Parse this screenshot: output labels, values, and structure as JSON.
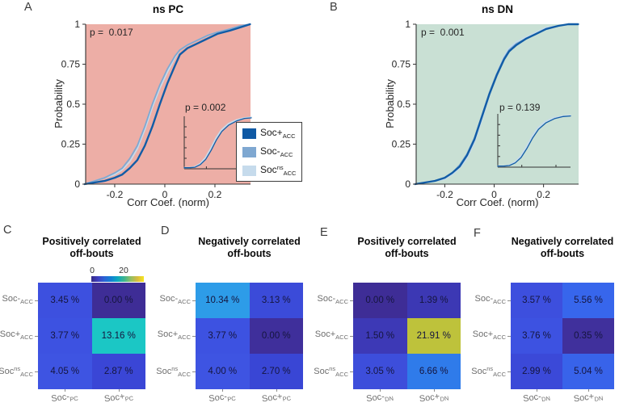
{
  "panel_a": {
    "letter": "A",
    "title": "ns PC",
    "p_label": "p =  0.017",
    "inset_p_label": "p = 0.002",
    "ylabel": "Probability",
    "xlabel": "Corr Coef. (norm)"
  },
  "panel_b": {
    "letter": "B",
    "title": "ns DN",
    "p_label": "p =  0.001",
    "inset_p_label": "p = 0.139",
    "ylabel": "Probability",
    "xlabel": "Corr Coef. (norm)"
  },
  "legend": {
    "items": [
      {
        "base": "Soc+",
        "sup": "",
        "sub": "ACC",
        "color": "#0F59A4"
      },
      {
        "base": "Soc-",
        "sup": "",
        "sub": "ACC",
        "color": "#7FA8D1"
      },
      {
        "base": "Soc",
        "sup": "ns",
        "sub": "ACC",
        "color": "#C6DBEC"
      }
    ]
  },
  "colorbar": {
    "tick_low": "0",
    "tick_high": "20",
    "gradient": [
      "#352A87",
      "#3E3FC2",
      "#2A63D5",
      "#1181D2",
      "#0CA7BE",
      "#3EB58E",
      "#90BE64",
      "#D9BB3F",
      "#F6E61F"
    ]
  },
  "chart_data": [
    {
      "type": "line",
      "subtype": "cdf",
      "panel": "A",
      "title": "ns PC",
      "annotation": "p =  0.017",
      "xlabel": "Corr Coef. (norm)",
      "ylabel": "Probability",
      "xlim": [
        -0.316,
        0.342
      ],
      "ylim": [
        0,
        1
      ],
      "xticks": [
        -0.2,
        0,
        0.2
      ],
      "yticks": [
        0,
        0.25,
        0.5,
        0.75,
        1
      ],
      "plot_bg": "#EDAEA6",
      "grid": false,
      "legend_position": "lower right",
      "series": [
        {
          "name": "Soc ns ACC",
          "color": "#C6DBEC",
          "width": 1.8,
          "x": [
            -0.32,
            -0.28,
            -0.24,
            -0.2,
            -0.17,
            -0.14,
            -0.11,
            -0.08,
            -0.05,
            -0.02,
            0.01,
            0.04,
            0.06,
            0.09,
            0.13,
            0.17,
            0.21,
            0.26,
            0.3,
            0.34
          ],
          "y": [
            0.0,
            0.02,
            0.04,
            0.06,
            0.09,
            0.14,
            0.22,
            0.34,
            0.48,
            0.6,
            0.7,
            0.79,
            0.84,
            0.87,
            0.9,
            0.93,
            0.95,
            0.97,
            0.99,
            1.0
          ]
        },
        {
          "name": "Soc- ACC",
          "color": "#7FA8D1",
          "width": 1.8,
          "x": [
            -0.32,
            -0.28,
            -0.24,
            -0.2,
            -0.17,
            -0.14,
            -0.11,
            -0.08,
            -0.05,
            -0.02,
            0.01,
            0.04,
            0.06,
            0.09,
            0.13,
            0.17,
            0.21,
            0.26,
            0.3,
            0.34
          ],
          "y": [
            0.0,
            0.02,
            0.04,
            0.07,
            0.1,
            0.16,
            0.24,
            0.36,
            0.5,
            0.62,
            0.72,
            0.8,
            0.84,
            0.87,
            0.9,
            0.93,
            0.95,
            0.97,
            0.99,
            1.0
          ]
        },
        {
          "name": "Soc+ ACC",
          "color": "#115CA6",
          "width": 2.4,
          "x": [
            -0.32,
            -0.28,
            -0.24,
            -0.2,
            -0.17,
            -0.14,
            -0.11,
            -0.08,
            -0.05,
            -0.02,
            0.01,
            0.04,
            0.06,
            0.09,
            0.13,
            0.17,
            0.21,
            0.26,
            0.3,
            0.34
          ],
          "y": [
            0.0,
            0.01,
            0.02,
            0.04,
            0.06,
            0.1,
            0.15,
            0.24,
            0.36,
            0.5,
            0.63,
            0.74,
            0.81,
            0.85,
            0.88,
            0.91,
            0.94,
            0.96,
            0.98,
            1.0
          ]
        }
      ],
      "inset": {
        "annotation": "p = 0.002",
        "series": [
          {
            "name": "light",
            "color": "#C6DBEC",
            "width": 1.8,
            "x": [
              0,
              0.08,
              0.16,
              0.24,
              0.32,
              0.4,
              0.48,
              0.56,
              0.66,
              0.78,
              0.9,
              1.0
            ],
            "y": [
              0.02,
              0.02,
              0.04,
              0.1,
              0.22,
              0.4,
              0.6,
              0.75,
              0.86,
              0.93,
              0.97,
              0.98
            ]
          },
          {
            "name": "dark",
            "color": "#115CA6",
            "width": 1.3,
            "x": [
              0,
              0.08,
              0.16,
              0.24,
              0.32,
              0.4,
              0.48,
              0.56,
              0.66,
              0.78,
              0.9,
              1.0
            ],
            "y": [
              0.02,
              0.02,
              0.03,
              0.08,
              0.18,
              0.35,
              0.55,
              0.71,
              0.83,
              0.91,
              0.96,
              0.97
            ]
          }
        ]
      }
    },
    {
      "type": "line",
      "subtype": "cdf",
      "panel": "B",
      "title": "ns DN",
      "annotation": "p =  0.001",
      "xlabel": "Corr Coef. (norm)",
      "ylabel": "Probability",
      "xlim": [
        -0.316,
        0.342
      ],
      "ylim": [
        0,
        1
      ],
      "xticks": [
        -0.2,
        0,
        0.2
      ],
      "yticks": [
        0,
        0.25,
        0.5,
        0.75,
        1
      ],
      "plot_bg": "#C9E0D4",
      "grid": false,
      "series": [
        {
          "name": "Soc ns ACC",
          "color": "#C6DBEC",
          "width": 1.6,
          "x": [
            -0.32,
            -0.28,
            -0.24,
            -0.2,
            -0.17,
            -0.14,
            -0.11,
            -0.08,
            -0.05,
            -0.02,
            0.01,
            0.04,
            0.06,
            0.09,
            0.13,
            0.17,
            0.21,
            0.26,
            0.3,
            0.34
          ],
          "y": [
            0.0,
            0.01,
            0.02,
            0.03,
            0.06,
            0.1,
            0.16,
            0.26,
            0.4,
            0.55,
            0.69,
            0.8,
            0.85,
            0.89,
            0.92,
            0.95,
            0.98,
            0.99,
            1.0,
            1.0
          ]
        },
        {
          "name": "Soc- ACC",
          "color": "#7FA8D1",
          "width": 1.6,
          "x": [
            -0.32,
            -0.28,
            -0.24,
            -0.2,
            -0.17,
            -0.14,
            -0.11,
            -0.08,
            -0.05,
            -0.02,
            0.01,
            0.04,
            0.06,
            0.09,
            0.13,
            0.17,
            0.21,
            0.26,
            0.3,
            0.34
          ],
          "y": [
            0.0,
            0.01,
            0.02,
            0.04,
            0.07,
            0.12,
            0.19,
            0.29,
            0.43,
            0.57,
            0.69,
            0.79,
            0.84,
            0.88,
            0.91,
            0.94,
            0.97,
            0.99,
            1.0,
            1.0
          ]
        },
        {
          "name": "Soc+ ACC",
          "color": "#115CA6",
          "width": 2.4,
          "x": [
            -0.32,
            -0.28,
            -0.24,
            -0.2,
            -0.17,
            -0.14,
            -0.11,
            -0.08,
            -0.05,
            -0.02,
            0.01,
            0.04,
            0.06,
            0.09,
            0.13,
            0.17,
            0.21,
            0.26,
            0.3,
            0.34
          ],
          "y": [
            0.0,
            0.01,
            0.02,
            0.04,
            0.07,
            0.11,
            0.18,
            0.28,
            0.42,
            0.56,
            0.68,
            0.78,
            0.83,
            0.87,
            0.91,
            0.94,
            0.97,
            0.99,
            1.0,
            1.0
          ]
        }
      ],
      "inset": {
        "annotation": "p = 0.139",
        "series": [
          {
            "name": "light",
            "color": "#C6DBEC",
            "width": 1.8,
            "x": [
              0,
              0.08,
              0.16,
              0.24,
              0.32,
              0.4,
              0.48,
              0.56,
              0.66,
              0.78,
              0.9,
              1.0
            ],
            "y": [
              0.02,
              0.02,
              0.04,
              0.1,
              0.22,
              0.4,
              0.6,
              0.75,
              0.86,
              0.93,
              0.96,
              0.97
            ]
          },
          {
            "name": "dark",
            "color": "#115CA6",
            "width": 1.3,
            "x": [
              0,
              0.08,
              0.16,
              0.24,
              0.32,
              0.4,
              0.48,
              0.56,
              0.66,
              0.78,
              0.9,
              1.0
            ],
            "y": [
              0.02,
              0.02,
              0.03,
              0.08,
              0.18,
              0.35,
              0.55,
              0.71,
              0.83,
              0.91,
              0.95,
              0.96
            ]
          }
        ]
      }
    },
    {
      "type": "heatmap",
      "panel": "C",
      "letter": "C",
      "title": "Positively correlated off-bouts",
      "title_lines": [
        "Positively correlated",
        "off-bouts"
      ],
      "unit": "%",
      "rows": [
        {
          "base": "Soc-",
          "sup": "",
          "sub": "ACC"
        },
        {
          "base": "Soc+",
          "sup": "",
          "sub": "ACC"
        },
        {
          "base": "Soc",
          "sup": "ns",
          "sub": "ACC"
        }
      ],
      "cols": [
        {
          "base": "Soc-",
          "sub": "PC"
        },
        {
          "base": "Soc+",
          "sub": "PC"
        }
      ],
      "values": [
        [
          3.45,
          0.0
        ],
        [
          3.77,
          13.16
        ],
        [
          4.05,
          2.87
        ]
      ],
      "cell_colors": [
        [
          "#3D50DF",
          "#3E2D96"
        ],
        [
          "#3D52E1",
          "#1BC7C5"
        ],
        [
          "#3E54E2",
          "#3A46D6"
        ]
      ],
      "has_colorbar": true,
      "colorbar_ticks": [
        0,
        20
      ]
    },
    {
      "type": "heatmap",
      "panel": "D",
      "letter": "D",
      "title": "Negatively correlated off-bouts",
      "title_lines": [
        "Negatively correlated",
        "off-bouts"
      ],
      "unit": "%",
      "rows": [
        {
          "base": "Soc-",
          "sup": "",
          "sub": "ACC"
        },
        {
          "base": "Soc+",
          "sup": "",
          "sub": "ACC"
        },
        {
          "base": "Soc",
          "sup": "ns",
          "sub": "ACC"
        }
      ],
      "cols": [
        {
          "base": "Soc-",
          "sub": "PC"
        },
        {
          "base": "Soc+",
          "sub": "PC"
        }
      ],
      "values": [
        [
          10.34,
          3.13
        ],
        [
          3.77,
          0.0
        ],
        [
          4.0,
          2.7
        ]
      ],
      "cell_colors": [
        [
          "#2D9CE8",
          "#3B4BD9"
        ],
        [
          "#3D52E1",
          "#3F2F9B"
        ],
        [
          "#3E54E2",
          "#3946D5"
        ]
      ],
      "has_colorbar": false
    },
    {
      "type": "heatmap",
      "panel": "E",
      "letter": "E",
      "title": "Positively correlated off-bouts",
      "title_lines": [
        "Positively correlated",
        "off-bouts"
      ],
      "unit": "%",
      "rows": [
        {
          "base": "Soc-",
          "sup": "",
          "sub": "ACC"
        },
        {
          "base": "Soc+",
          "sup": "",
          "sub": "ACC"
        },
        {
          "base": "Soc",
          "sup": "ns",
          "sub": "ACC"
        }
      ],
      "cols": [
        {
          "base": "Soc-",
          "sub": "DN"
        },
        {
          "base": "Soc+",
          "sub": "DN"
        }
      ],
      "values": [
        [
          0.0,
          1.39
        ],
        [
          1.5,
          21.91
        ],
        [
          3.05,
          6.66
        ]
      ],
      "cell_colors": [
        [
          "#3E2D96",
          "#3C38B4"
        ],
        [
          "#3D39B6",
          "#BEC23B"
        ],
        [
          "#3D4EDB",
          "#2F7BEA"
        ]
      ],
      "has_colorbar": false
    },
    {
      "type": "heatmap",
      "panel": "F",
      "letter": "F",
      "title": "Negatively correlated off-bouts",
      "title_lines": [
        "Negatively correlated",
        "off-bouts"
      ],
      "unit": "%",
      "rows": [
        {
          "base": "Soc-",
          "sup": "",
          "sub": "ACC"
        },
        {
          "base": "Soc+",
          "sup": "",
          "sub": "ACC"
        },
        {
          "base": "Soc",
          "sup": "ns",
          "sub": "ACC"
        }
      ],
      "cols": [
        {
          "base": "Soc-",
          "sub": "DN"
        },
        {
          "base": "Soc+",
          "sub": "DN"
        }
      ],
      "values": [
        [
          3.57,
          5.56
        ],
        [
          3.76,
          0.35
        ],
        [
          2.99,
          5.04
        ]
      ],
      "cell_colors": [
        [
          "#3D4FDE",
          "#3766EC"
        ],
        [
          "#3D52E1",
          "#40309C"
        ],
        [
          "#3B49D8",
          "#3863EA"
        ]
      ],
      "has_colorbar": false
    }
  ]
}
